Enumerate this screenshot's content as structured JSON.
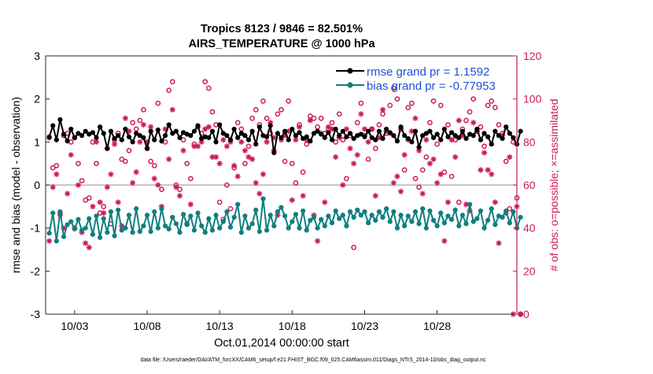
{
  "chart_data": {
    "type": "line",
    "title_line1": "Tropics 8123 / 9846 = 82.501%",
    "title_line2": "AIRS_TEMPERATURE @ 1000 hPa",
    "xlabel": "Oct.01,2014 00:00:00 start",
    "ylabel_left": "rmse and bias (model - observation)",
    "ylabel_right": "# of obs: o=possible; ×=assimilated",
    "footnote": "data file: /Users/raeder/DAI/ATM_forcXX/CAM6_setup/f.e21.FHIST_BGC.f09_025.CAM6assim.011/Diags_NTrS_2014-10/obs_diag_output.nc",
    "x_range_days": [
      0,
      32.5
    ],
    "x_ticks": [
      {
        "day": 2,
        "label": "10/03"
      },
      {
        "day": 7,
        "label": "10/08"
      },
      {
        "day": 12,
        "label": "10/13"
      },
      {
        "day": 17,
        "label": "10/18"
      },
      {
        "day": 22,
        "label": "10/23"
      },
      {
        "day": 27,
        "label": "10/28"
      }
    ],
    "y_left_range": [
      -3,
      3
    ],
    "y_left_ticks": [
      -3,
      -2,
      -1,
      0,
      1,
      2,
      3
    ],
    "y_right_range": [
      0,
      120
    ],
    "y_right_ticks": [
      0,
      20,
      40,
      60,
      80,
      100,
      120
    ],
    "timestep_hours": 6,
    "legend": {
      "location": "top-right",
      "entries": [
        "rmse grand pr = 1.1592",
        "bias grand pr = -0.77953"
      ]
    },
    "colors": {
      "rmse": "#000000",
      "bias": "#0f7f7f",
      "obs": "#cc1a5a",
      "legend_text": "#1f4fd8",
      "zero_line": "#b3b3b3"
    },
    "series": [
      {
        "name": "rmse",
        "values": [
          1.12,
          1.38,
          1.05,
          1.52,
          1.18,
          1.02,
          1.3,
          1.1,
          1.2,
          1.15,
          1.25,
          1.18,
          1.22,
          1.1,
          1.35,
          1.2,
          0.85,
          1.25,
          1.08,
          1.15,
          1.05,
          1.3,
          1.12,
          1.0,
          1.2,
          1.15,
          1.1,
          0.85,
          1.25,
          1.05,
          1.28,
          1.02,
          1.15,
          1.4,
          1.2,
          1.25,
          1.1,
          1.22,
          1.18,
          1.15,
          1.25,
          1.38,
          1.08,
          1.12,
          1.1,
          1.25,
          1.0,
          1.4,
          1.2,
          1.15,
          1.05,
          1.3,
          1.1,
          1.2,
          1.15,
          1.05,
          1.25,
          0.95,
          1.35,
          1.15,
          1.12,
          1.38,
          0.75,
          1.2,
          1.1,
          1.25,
          1.05,
          1.3,
          1.15,
          1.22,
          1.08,
          1.12,
          1.02,
          1.2,
          1.25,
          1.18,
          1.1,
          1.22,
          1.05,
          1.3,
          1.15,
          1.25,
          1.12,
          1.2,
          1.08,
          1.15,
          1.18,
          1.12,
          1.25,
          1.1,
          1.05,
          1.25,
          1.08,
          1.3,
          1.22,
          1.15,
          1.02,
          1.35,
          1.15,
          1.08,
          1.0,
          1.25,
          0.88,
          1.15,
          1.2,
          1.25,
          1.1,
          1.18,
          1.05,
          1.3,
          1.12,
          1.22,
          1.15,
          1.1,
          1.25,
          1.08,
          1.18,
          1.15,
          1.3,
          1.05,
          1.2,
          1.12,
          0.95,
          1.25,
          1.15,
          1.08,
          1.35,
          1.2,
          1.1,
          0.95,
          1.25
        ]
      },
      {
        "name": "bias",
        "values": [
          -1.12,
          -0.65,
          -1.3,
          -0.62,
          -1.2,
          -0.92,
          -0.85,
          -1.02,
          -0.8,
          -1.05,
          -1.0,
          -0.78,
          -1.15,
          -0.72,
          -1.22,
          -0.78,
          -1.1,
          -0.62,
          -1.18,
          -0.58,
          -1.05,
          -1.0,
          -0.7,
          -1.1,
          -0.55,
          -1.08,
          -0.95,
          -0.7,
          -1.08,
          -0.62,
          -1.0,
          -0.55,
          -0.95,
          -1.02,
          -0.75,
          -0.9,
          -1.1,
          -0.68,
          -0.92,
          -0.72,
          -1.05,
          -0.65,
          -0.95,
          -1.1,
          -0.78,
          -1.05,
          -0.7,
          -1.0,
          -0.85,
          -0.62,
          -0.98,
          -0.75,
          -0.45,
          -1.1,
          -0.72,
          -1.0,
          -0.9,
          -0.58,
          -1.08,
          -0.32,
          -1.05,
          -0.7,
          -0.95,
          -0.62,
          -0.52,
          -0.72,
          -1.0,
          -0.85,
          -0.68,
          -1.0,
          -0.6,
          -1.05,
          -0.82,
          -0.75,
          -1.0,
          -0.8,
          -0.95,
          -0.72,
          -0.88,
          -0.6,
          -0.78,
          -0.7,
          -0.95,
          -0.62,
          -0.75,
          -0.58,
          -0.7,
          -0.62,
          -0.88,
          -0.7,
          -0.82,
          -0.62,
          -0.75,
          -0.55,
          -0.85,
          -0.62,
          -1.0,
          -0.7,
          -0.95,
          -0.72,
          -0.85,
          -0.62,
          -0.9,
          -0.55,
          -1.0,
          -0.6,
          -0.82,
          -0.95,
          -0.65,
          -0.88,
          -0.72,
          -0.8,
          -0.58,
          -0.95,
          -0.7,
          -0.9,
          -0.45,
          -0.85,
          -0.78,
          -0.6,
          -1.0,
          -0.82,
          -0.55,
          -0.92,
          -0.72,
          -0.75,
          -0.6,
          -0.88,
          -0.62,
          -1.0,
          -0.75
        ]
      },
      {
        "name": "obs_possible",
        "axis": "right",
        "values": [
          82,
          68,
          69,
          47,
          83,
          84,
          80,
          82,
          70,
          62,
          53,
          54,
          80,
          70,
          47,
          50,
          77,
          42,
          81,
          84,
          72,
          71,
          76,
          89,
          86,
          90,
          95,
          77,
          71,
          69,
          98,
          58,
          80,
          104,
          108,
          60,
          58,
          81,
          70,
          63,
          79,
          87,
          84,
          108,
          105,
          94,
          88,
          52,
          44,
          60,
          49,
          68,
          89,
          86,
          70,
          78,
          91,
          95,
          88,
          99,
          91,
          84,
          76,
          93,
          95,
          71,
          99,
          70,
          61,
          88,
          66,
          79,
          92,
          91,
          87,
          91,
          84,
          86,
          89,
          80,
          93,
          81,
          63,
          83,
          31,
          89,
          98,
          83,
          72,
          86,
          77,
          88,
          93,
          84,
          97,
          105,
          100,
          86,
          67,
          96,
          98,
          63,
          59,
          67,
          73,
          89,
          99,
          79,
          97,
          66,
          88,
          64,
          81,
          52,
          86,
          90,
          94,
          100,
          85,
          87,
          78,
          97,
          99,
          96,
          88,
          84,
          71,
          49,
          80,
          54,
          0
        ]
      },
      {
        "name": "obs_assimilated",
        "axis": "right",
        "values": [
          34,
          59,
          65,
          46,
          40,
          56,
          74,
          40,
          60,
          38,
          33,
          31,
          50,
          80,
          52,
          47,
          59,
          65,
          79,
          52,
          41,
          91,
          85,
          61,
          66,
          80,
          88,
          80,
          87,
          63,
          60,
          50,
          86,
          72,
          95,
          59,
          55,
          76,
          42,
          51,
          78,
          78,
          80,
          86,
          87,
          73,
          73,
          70,
          81,
          78,
          80,
          69,
          64,
          80,
          76,
          73,
          72,
          61,
          56,
          65,
          80,
          89,
          82,
          46,
          81,
          83,
          85,
          53,
          81,
          87,
          55,
          81,
          90,
          46,
          34,
          84,
          52,
          87,
          86,
          73,
          82,
          60,
          86,
          77,
          70,
          74,
          93,
          86,
          80,
          86,
          55,
          82,
          95,
          85,
          84,
          61,
          64,
          57,
          74,
          81,
          85,
          91,
          76,
          56,
          81,
          70,
          72,
          61,
          65,
          34,
          52,
          81,
          73,
          90,
          83,
          51,
          48,
          89,
          85,
          67,
          75,
          67,
          65,
          52,
          33,
          83,
          47,
          73,
          0,
          50,
          0
        ]
      }
    ]
  }
}
